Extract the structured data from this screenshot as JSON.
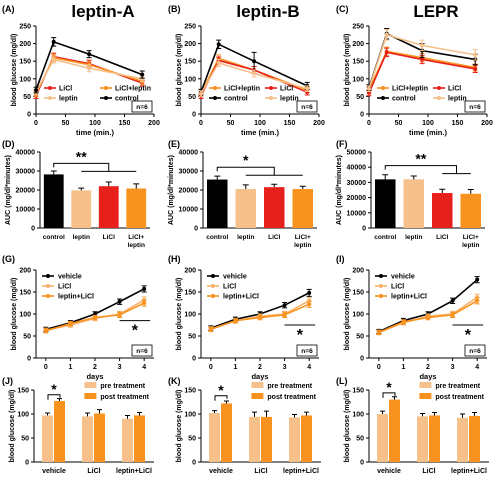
{
  "colors": {
    "red": "#e8201c",
    "orange": "#f7931e",
    "tan": "#f5c08a",
    "black": "#000000",
    "light_orange": "#f9b26a"
  },
  "chart_data": [
    {
      "letter": "(A)",
      "title": "leptin-A",
      "type": "line",
      "x": [
        0,
        30,
        90,
        180
      ],
      "xlim": [
        0,
        200
      ],
      "xticks": [
        0,
        50,
        100,
        150,
        200
      ],
      "ylim": [
        0,
        250
      ],
      "yticks": [
        0,
        50,
        100,
        150,
        200,
        250
      ],
      "xlabel": "time (min.)",
      "ylabel": "blood glucose (mg/dl)",
      "n_label": "n=6",
      "series": [
        {
          "name": "LiCl",
          "color": "#e8201c",
          "values": [
            52,
            163,
            143,
            88
          ],
          "err": [
            8,
            10,
            10,
            8
          ]
        },
        {
          "name": "LiCl+leptin",
          "color": "#f7931e",
          "values": [
            58,
            160,
            140,
            93
          ],
          "err": [
            8,
            10,
            10,
            8
          ]
        },
        {
          "name": "leptin",
          "color": "#f5c08a",
          "values": [
            62,
            155,
            130,
            100
          ],
          "err": [
            8,
            10,
            10,
            8
          ]
        },
        {
          "name": "control",
          "color": "#000000",
          "values": [
            68,
            205,
            170,
            112
          ],
          "err": [
            8,
            12,
            10,
            10
          ]
        }
      ]
    },
    {
      "letter": "(B)",
      "title": "leptin-B",
      "type": "line",
      "x": [
        0,
        30,
        90,
        180
      ],
      "xlim": [
        0,
        200
      ],
      "xticks": [
        0,
        50,
        100,
        150,
        200
      ],
      "ylim": [
        0,
        250
      ],
      "yticks": [
        0,
        50,
        100,
        150,
        200,
        250
      ],
      "xlabel": "time (min.)",
      "ylabel": "blood glucose (mg/dl)",
      "n_label": "n=6",
      "series": [
        {
          "name": "LiCl+leptin",
          "color": "#f7931e",
          "values": [
            58,
            158,
            125,
            68
          ],
          "err": [
            8,
            10,
            10,
            8
          ]
        },
        {
          "name": "LiCl",
          "color": "#e8201c",
          "values": [
            52,
            152,
            125,
            62
          ],
          "err": [
            8,
            10,
            10,
            8
          ]
        },
        {
          "name": "control",
          "color": "#000000",
          "values": [
            62,
            198,
            150,
            80
          ],
          "err": [
            8,
            12,
            25,
            10
          ]
        },
        {
          "name": "leptin",
          "color": "#f5c08a",
          "values": [
            58,
            145,
            115,
            72
          ],
          "err": [
            8,
            10,
            10,
            8
          ]
        }
      ]
    },
    {
      "letter": "(C)",
      "title": "LEPR",
      "type": "line",
      "x": [
        0,
        30,
        90,
        180
      ],
      "xlim": [
        0,
        200
      ],
      "xticks": [
        0,
        50,
        100,
        150,
        200
      ],
      "ylim": [
        0,
        250
      ],
      "yticks": [
        0,
        50,
        100,
        150,
        200,
        250
      ],
      "xlabel": "time (min.)",
      "ylabel": "blood glucose (mg/dl)",
      "n_label": "n=6",
      "series": [
        {
          "name": "LiCl+leptin",
          "color": "#f7931e",
          "values": [
            68,
            178,
            160,
            132
          ],
          "err": [
            8,
            12,
            12,
            10
          ]
        },
        {
          "name": "LiCl",
          "color": "#e8201c",
          "values": [
            60,
            175,
            155,
            128
          ],
          "err": [
            8,
            12,
            12,
            10
          ]
        },
        {
          "name": "control",
          "color": "#000000",
          "values": [
            75,
            228,
            180,
            155
          ],
          "err": [
            8,
            15,
            20,
            15
          ]
        },
        {
          "name": "leptin",
          "color": "#f5c08a",
          "values": [
            72,
            225,
            195,
            168
          ],
          "err": [
            8,
            15,
            15,
            15
          ]
        }
      ]
    },
    {
      "letter": "(D)",
      "type": "bar",
      "categories": [
        "control",
        "leptin",
        "LiCl",
        "LiCl+\nleptin"
      ],
      "colors": [
        "#000000",
        "#f5c08a",
        "#e8201c",
        "#f7931e"
      ],
      "values": [
        28200,
        19800,
        22000,
        20800
      ],
      "err": [
        1800,
        1200,
        2200,
        2400
      ],
      "ylim": [
        0,
        40000
      ],
      "yticks": [
        0,
        10000,
        20000,
        30000,
        40000
      ],
      "ylabel": "AUC (mg/dl*minutes)",
      "sig": {
        "label": "**",
        "from": 0,
        "to": [
          1,
          3
        ],
        "y": 34000
      }
    },
    {
      "letter": "(E)",
      "type": "bar",
      "categories": [
        "control",
        "leptin",
        "LiCl",
        "LiCl+\nleptin"
      ],
      "colors": [
        "#000000",
        "#f5c08a",
        "#e8201c",
        "#f7931e"
      ],
      "values": [
        25500,
        20500,
        21500,
        20500
      ],
      "err": [
        1800,
        2200,
        1500,
        1500
      ],
      "ylim": [
        0,
        40000
      ],
      "yticks": [
        0,
        10000,
        20000,
        30000,
        40000
      ],
      "ylabel": "AUC (mg/dl*minutes)",
      "sig": {
        "label": "*",
        "from": 0,
        "to": [
          1,
          3
        ],
        "y": 32000
      }
    },
    {
      "letter": "(F)",
      "type": "bar",
      "categories": [
        "control",
        "leptin",
        "LiCl",
        "LiCl+\nleptin"
      ],
      "colors": [
        "#000000",
        "#f5c08a",
        "#e8201c",
        "#f7931e"
      ],
      "values": [
        32000,
        32000,
        23000,
        22500
      ],
      "err": [
        3000,
        2200,
        2500,
        2800
      ],
      "ylim": [
        0,
        50000
      ],
      "yticks": [
        0,
        10000,
        20000,
        30000,
        40000,
        50000
      ],
      "ylabel": "AUC (mg/dl*minutes)",
      "sig": {
        "label": "**",
        "from": 0,
        "to": [
          2,
          3
        ],
        "y": 41000
      }
    },
    {
      "letter": "(G)",
      "type": "line",
      "x": [
        0,
        1,
        2,
        3,
        4
      ],
      "xlim": [
        -0.4,
        4.4
      ],
      "xticks": [
        0,
        1,
        2,
        3,
        4
      ],
      "ylim": [
        0,
        200
      ],
      "yticks": [
        0,
        50,
        100,
        150,
        200
      ],
      "xlabel": "days",
      "ylabel": "blood glucose (mg/dl)",
      "n_label": "n=6",
      "series": [
        {
          "name": "vehicle",
          "color": "#000000",
          "values": [
            65,
            80,
            100,
            128,
            157
          ],
          "err": [
            5,
            5,
            5,
            6,
            7
          ]
        },
        {
          "name": "LiCl",
          "color": "#f9b26a",
          "values": [
            63,
            75,
            90,
            100,
            132
          ],
          "err": [
            5,
            5,
            5,
            6,
            7
          ]
        },
        {
          "name": "leptin+LiCl",
          "color": "#f7931e",
          "values": [
            62,
            78,
            92,
            98,
            125
          ],
          "err": [
            5,
            5,
            5,
            6,
            7
          ]
        }
      ],
      "sig": {
        "label": "*",
        "x": [
          3,
          4
        ],
        "y": 85
      }
    },
    {
      "letter": "(H)",
      "type": "line",
      "x": [
        0,
        1,
        2,
        3,
        4
      ],
      "xlim": [
        -0.4,
        4.4
      ],
      "xticks": [
        0,
        1,
        2,
        3,
        4
      ],
      "ylim": [
        0,
        200
      ],
      "yticks": [
        0,
        50,
        100,
        150,
        200
      ],
      "xlabel": "days",
      "ylabel": "blood glucose (mg/dl)",
      "n_label": "n=6",
      "series": [
        {
          "name": "vehicle",
          "color": "#000000",
          "values": [
            68,
            88,
            100,
            120,
            148
          ],
          "err": [
            5,
            5,
            5,
            6,
            8
          ]
        },
        {
          "name": "LiCl",
          "color": "#f9b26a",
          "values": [
            66,
            84,
            95,
            100,
            130
          ],
          "err": [
            5,
            5,
            5,
            6,
            7
          ]
        },
        {
          "name": "leptin+LiCl",
          "color": "#f7931e",
          "values": [
            65,
            85,
            92,
            98,
            122
          ],
          "err": [
            5,
            5,
            5,
            6,
            7
          ]
        }
      ],
      "sig": {
        "label": "*",
        "x": [
          3,
          4
        ],
        "y": 75
      }
    },
    {
      "letter": "(I)",
      "type": "line",
      "x": [
        0,
        1,
        2,
        3,
        4
      ],
      "xlim": [
        -0.4,
        4.4
      ],
      "xticks": [
        0,
        1,
        2,
        3,
        4
      ],
      "ylim": [
        0,
        200
      ],
      "yticks": [
        0,
        50,
        100,
        150,
        200
      ],
      "xlabel": "days",
      "ylabel": "blood glucose (mg/dl)",
      "n_label": "n=6",
      "series": [
        {
          "name": "vehicle",
          "color": "#000000",
          "values": [
            60,
            85,
            100,
            130,
            178
          ],
          "err": [
            5,
            5,
            5,
            6,
            7
          ]
        },
        {
          "name": "LiCl",
          "color": "#f9b26a",
          "values": [
            58,
            80,
            95,
            100,
            138
          ],
          "err": [
            5,
            5,
            5,
            6,
            7
          ]
        },
        {
          "name": "leptin+LiCl",
          "color": "#f7931e",
          "values": [
            58,
            82,
            92,
            98,
            130
          ],
          "err": [
            5,
            5,
            5,
            6,
            7
          ]
        }
      ],
      "sig": {
        "label": "*",
        "x": [
          3,
          4
        ],
        "y": 75
      }
    },
    {
      "letter": "(J)",
      "type": "grouped_bar",
      "categories": [
        "vehicle",
        "LiCl",
        "leptin+LiCl"
      ],
      "ylim": [
        0,
        150
      ],
      "yticks": [
        0,
        50,
        100,
        150
      ],
      "ylabel": "blood glucose (mg/dl)",
      "series": [
        {
          "name": "pre treatment",
          "color": "#f5c08a",
          "values": [
            97,
            95,
            90
          ],
          "err": [
            5,
            7,
            7
          ]
        },
        {
          "name": "post treatment",
          "color": "#f7931e",
          "values": [
            127,
            101,
            97
          ],
          "err": [
            5,
            8,
            6
          ]
        }
      ],
      "sig": {
        "label": "*",
        "group": 0,
        "y": 140
      }
    },
    {
      "letter": "(K)",
      "type": "grouped_bar",
      "categories": [
        "vehicle",
        "LiCl",
        "leptin+LiCl"
      ],
      "ylim": [
        0,
        150
      ],
      "yticks": [
        0,
        50,
        100,
        150
      ],
      "ylabel": "blood glucose (mg/dl)",
      "series": [
        {
          "name": "pre treatment",
          "color": "#f5c08a",
          "values": [
            102,
            94,
            93
          ],
          "err": [
            5,
            10,
            6
          ]
        },
        {
          "name": "post treatment",
          "color": "#f7931e",
          "values": [
            122,
            94,
            97
          ],
          "err": [
            5,
            12,
            7
          ]
        }
      ],
      "sig": {
        "label": "*",
        "group": 0,
        "y": 138
      }
    },
    {
      "letter": "(L)",
      "type": "grouped_bar",
      "categories": [
        "vehicle",
        "LiCl",
        "leptin+LiCl"
      ],
      "ylim": [
        0,
        150
      ],
      "yticks": [
        0,
        50,
        100,
        150
      ],
      "ylabel": "blood glucose (mg/dl)",
      "series": [
        {
          "name": "pre treatment",
          "color": "#f5c08a",
          "values": [
            100,
            95,
            92
          ],
          "err": [
            6,
            6,
            8
          ]
        },
        {
          "name": "post treatment",
          "color": "#f7931e",
          "values": [
            130,
            97,
            96
          ],
          "err": [
            6,
            6,
            7
          ]
        }
      ],
      "sig": {
        "label": "*",
        "group": 0,
        "y": 144
      }
    }
  ]
}
